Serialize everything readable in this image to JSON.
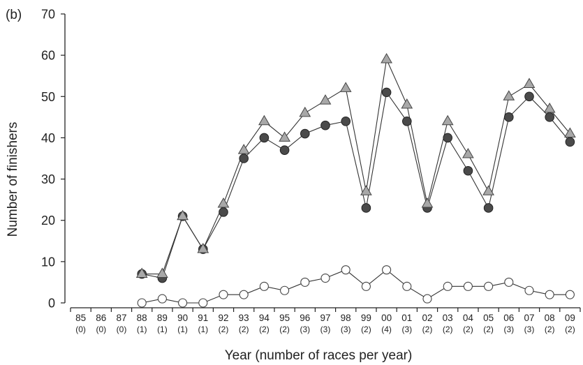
{
  "chart_data": {
    "type": "line",
    "panel_label": "(b)",
    "xlabel": "Year (number of races per year)",
    "ylabel": "Number of finishers",
    "ylim": [
      0,
      70
    ],
    "yticks": [
      0,
      10,
      20,
      30,
      40,
      50,
      60,
      70
    ],
    "grid": false,
    "categories": [
      "85",
      "86",
      "87",
      "88",
      "89",
      "90",
      "91",
      "92",
      "93",
      "94",
      "95",
      "96",
      "97",
      "98",
      "99",
      "00",
      "01",
      "02",
      "03",
      "04",
      "05",
      "06",
      "07",
      "08",
      "09"
    ],
    "races_per_year": [
      "(0)",
      "(0)",
      "(0)",
      "(1)",
      "(1)",
      "(1)",
      "(1)",
      "(2)",
      "(2)",
      "(2)",
      "(2)",
      "(3)",
      "(3)",
      "(3)",
      "(2)",
      "(4)",
      "(3)",
      "(2)",
      "(2)",
      "(2)",
      "(2)",
      "(3)",
      "(3)",
      "(2)",
      "(2)"
    ],
    "series": [
      {
        "marker": "triangle",
        "color": "#a8a8a8",
        "values": [
          null,
          null,
          null,
          7,
          7,
          21,
          13,
          24,
          37,
          44,
          40,
          46,
          49,
          52,
          27,
          59,
          48,
          24,
          44,
          36,
          27,
          50,
          53,
          47,
          41
        ]
      },
      {
        "marker": "filled-circle",
        "color": "#4a4a4a",
        "values": [
          null,
          null,
          null,
          7,
          6,
          21,
          13,
          22,
          35,
          40,
          37,
          41,
          43,
          44,
          23,
          51,
          44,
          23,
          40,
          32,
          23,
          45,
          50,
          45,
          39
        ]
      },
      {
        "marker": "open-circle",
        "color": "#ffffff",
        "values": [
          null,
          null,
          null,
          0,
          1,
          0,
          0,
          2,
          2,
          4,
          3,
          5,
          6,
          8,
          4,
          8,
          4,
          1,
          4,
          4,
          4,
          5,
          3,
          2,
          2
        ]
      }
    ]
  }
}
